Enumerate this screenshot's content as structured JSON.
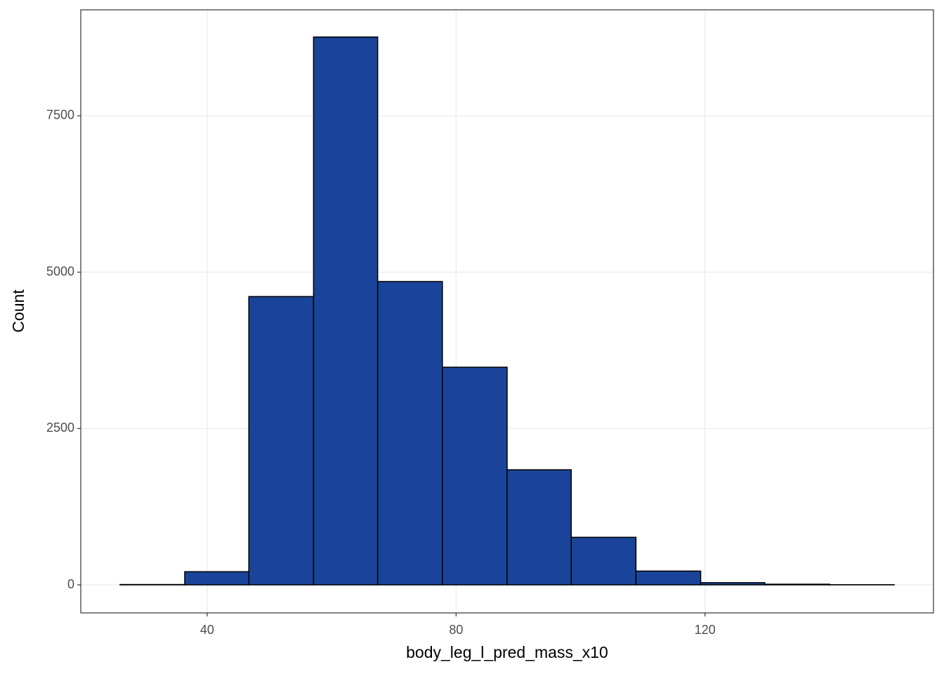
{
  "chart_data": {
    "type": "histogram",
    "x_label": "body_leg_l_pred_mass_x10",
    "y_label": "Count",
    "bins": [
      26.0,
      36.4,
      46.7,
      57.1,
      67.4,
      77.8,
      88.2,
      98.5,
      108.9,
      119.3,
      129.6,
      140.0,
      150.4
    ],
    "values": [
      5,
      210,
      4610,
      8760,
      4850,
      3480,
      1840,
      760,
      220,
      35,
      10,
      2
    ],
    "color": "#1a4499",
    "edge_color": "#000000",
    "xlim": [
      19.7,
      156.7
    ],
    "ylim": [
      -449,
      9195
    ],
    "xticks": [
      40,
      80,
      120
    ],
    "yticks": [
      0,
      2500,
      5000,
      7500
    ],
    "grid": true
  }
}
